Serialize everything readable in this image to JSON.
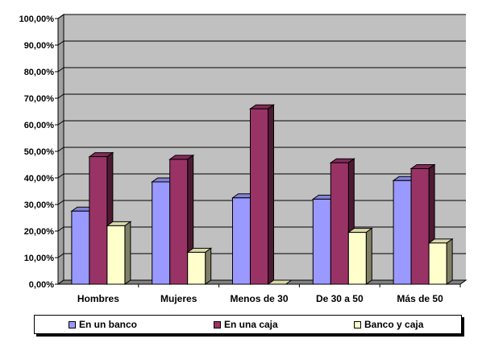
{
  "chart_data": {
    "type": "bar",
    "categories": [
      "Hombres",
      "Mujeres",
      "Menos de 30",
      "De 30 a 50",
      "Más de 50"
    ],
    "series": [
      {
        "name": "En un banco",
        "values": [
          27.5,
          38.5,
          32.5,
          32.0,
          39.0
        ],
        "color": "#9999ff"
      },
      {
        "name": "En una caja",
        "values": [
          48.0,
          47.0,
          66.0,
          45.7,
          43.5
        ],
        "color": "#993366"
      },
      {
        "name": "Banco y caja",
        "values": [
          22.0,
          12.0,
          0.0,
          19.5,
          15.5
        ],
        "color": "#ffffcc"
      }
    ],
    "ylim": [
      0,
      100
    ],
    "y_ticks": [
      "0,00%",
      "10,00%",
      "20,00%",
      "30,00%",
      "40,00%",
      "50,00%",
      "60,00%",
      "70,00%",
      "80,00%",
      "90,00%",
      "100,00%"
    ],
    "grid": true,
    "legend_position": "bottom",
    "wall_color": "#c0c0c0",
    "floor_color": "#808080"
  }
}
